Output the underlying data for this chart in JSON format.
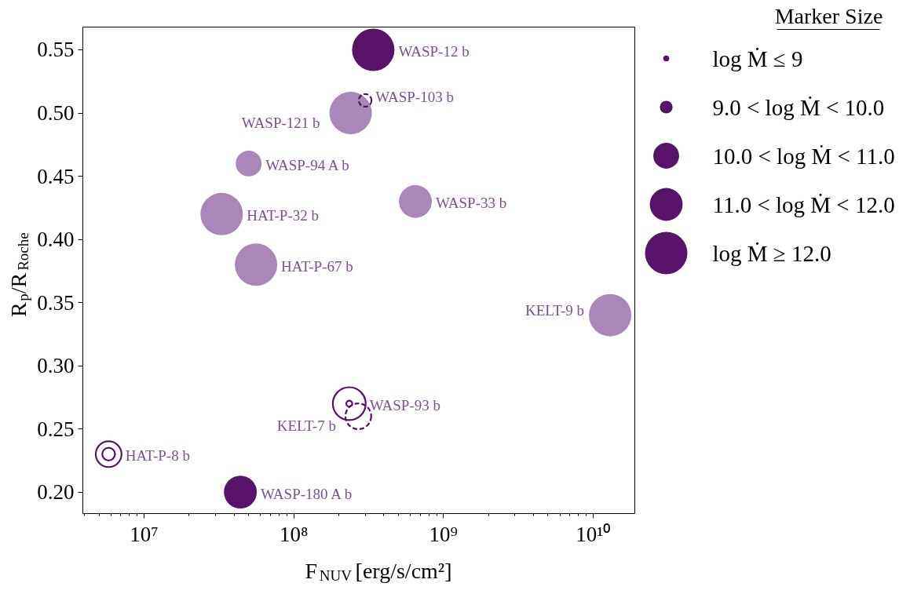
{
  "chart_data": {
    "type": "bubble",
    "xlabel": "F$_{NUV}$ [erg/s/cm²]",
    "ylabel": "R$_{p}$/R$_{Roche}$",
    "log": "x",
    "grid": false,
    "legend_title": "Marker Size",
    "xlim": [
      3900000.0,
      19000000000.0
    ],
    "ylim": [
      0.183,
      0.568
    ],
    "xticks": [
      {
        "value": 10000000.0,
        "label": "10⁷"
      },
      {
        "value": 100000000.0,
        "label": "10⁸"
      },
      {
        "value": 1000000000.0,
        "label": "10⁹"
      },
      {
        "value": 10000000000.0,
        "label": "10¹⁰"
      }
    ],
    "yticks": [
      {
        "value": 0.2,
        "label": "0.20"
      },
      {
        "value": 0.25,
        "label": "0.25"
      },
      {
        "value": 0.3,
        "label": "0.30"
      },
      {
        "value": 0.35,
        "label": "0.35"
      },
      {
        "value": 0.4,
        "label": "0.40"
      },
      {
        "value": 0.45,
        "label": "0.45"
      },
      {
        "value": 0.5,
        "label": "0.50"
      },
      {
        "value": 0.55,
        "label": "0.55"
      }
    ],
    "size_legend": [
      {
        "value": 0.02,
        "label": "log Ṁ ≤ 9"
      },
      {
        "value": 0.09,
        "label": "9.0 < log Ṁ < 10.0"
      },
      {
        "value": 0.37,
        "label": "10.0 < log Ṁ < 11.0"
      },
      {
        "value": 0.6,
        "label": "11.0 < log Ṁ < 12.0"
      },
      {
        "value": 1,
        "label": "log Ṁ ≥ 12.0"
      }
    ],
    "series": [
      {
        "color": "#a987b8",
        "x": [
          240000000.0,
          50000000.0,
          650000000.0,
          33000000.0,
          56000000.0,
          13000000000.0
        ],
        "values": [
          0.5,
          0.46,
          0.43,
          0.42,
          0.38,
          0.34
        ],
        "sizes": [
          1,
          0.37,
          0.6,
          1,
          1,
          1
        ]
      },
      {
        "color": "#58126a",
        "x": [
          340000000.0,
          44000000.0
        ],
        "values": [
          0.55,
          0.2
        ],
        "sizes": [
          1,
          0.6
        ]
      },
      {
        "color": "#58126a",
        "line_style": "solid",
        "x": [
          235000000.0,
          5800000.0
        ],
        "values": [
          0.27,
          0.23
        ],
        "sizes": [
          0.02,
          0.09
        ]
      },
      {
        "color": "#58126a",
        "line_style": "solid",
        "x": [
          235000000.0,
          5800000.0
        ],
        "values": [
          0.27,
          0.23
        ],
        "sizes": [
          0.6,
          0.37
        ]
      },
      {
        "color": "#58126a",
        "line_style": "dashed",
        "x": [
          300000000.0,
          270000000.0
        ],
        "values": [
          0.51,
          0.26
        ],
        "sizes": [
          0.09,
          0.37
        ]
      }
    ],
    "annotations": [
      {
        "text": "WASP-12 b",
        "x": 340000000.0,
        "y": 0.55
      },
      {
        "text": "WASP-103 b",
        "x": 300000000.0,
        "y": 0.51
      },
      {
        "text": "WASP-121 b",
        "x": 240000000.0,
        "y": 0.5
      },
      {
        "text": "WASP-94 A b",
        "x": 50000000.0,
        "y": 0.46
      },
      {
        "text": "WASP-33 b",
        "x": 650000000.0,
        "y": 0.43
      },
      {
        "text": "HAT-P-32 b",
        "x": 33000000.0,
        "y": 0.42
      },
      {
        "text": "HAT-P-67 b",
        "x": 56000000.0,
        "y": 0.38
      },
      {
        "text": "KELT-9 b",
        "x": 13000000000.0,
        "y": 0.34
      },
      {
        "text": "WASP-93 b",
        "x": 235000000.0,
        "y": 0.27
      },
      {
        "text": "KELT-7 b",
        "x": 270000000.0,
        "y": 0.26
      },
      {
        "text": "HAT-P-8 b",
        "x": 5800000.0,
        "y": 0.23
      },
      {
        "text": "WASP-180 A b",
        "x": 44000000.0,
        "y": 0.2
      }
    ]
  }
}
